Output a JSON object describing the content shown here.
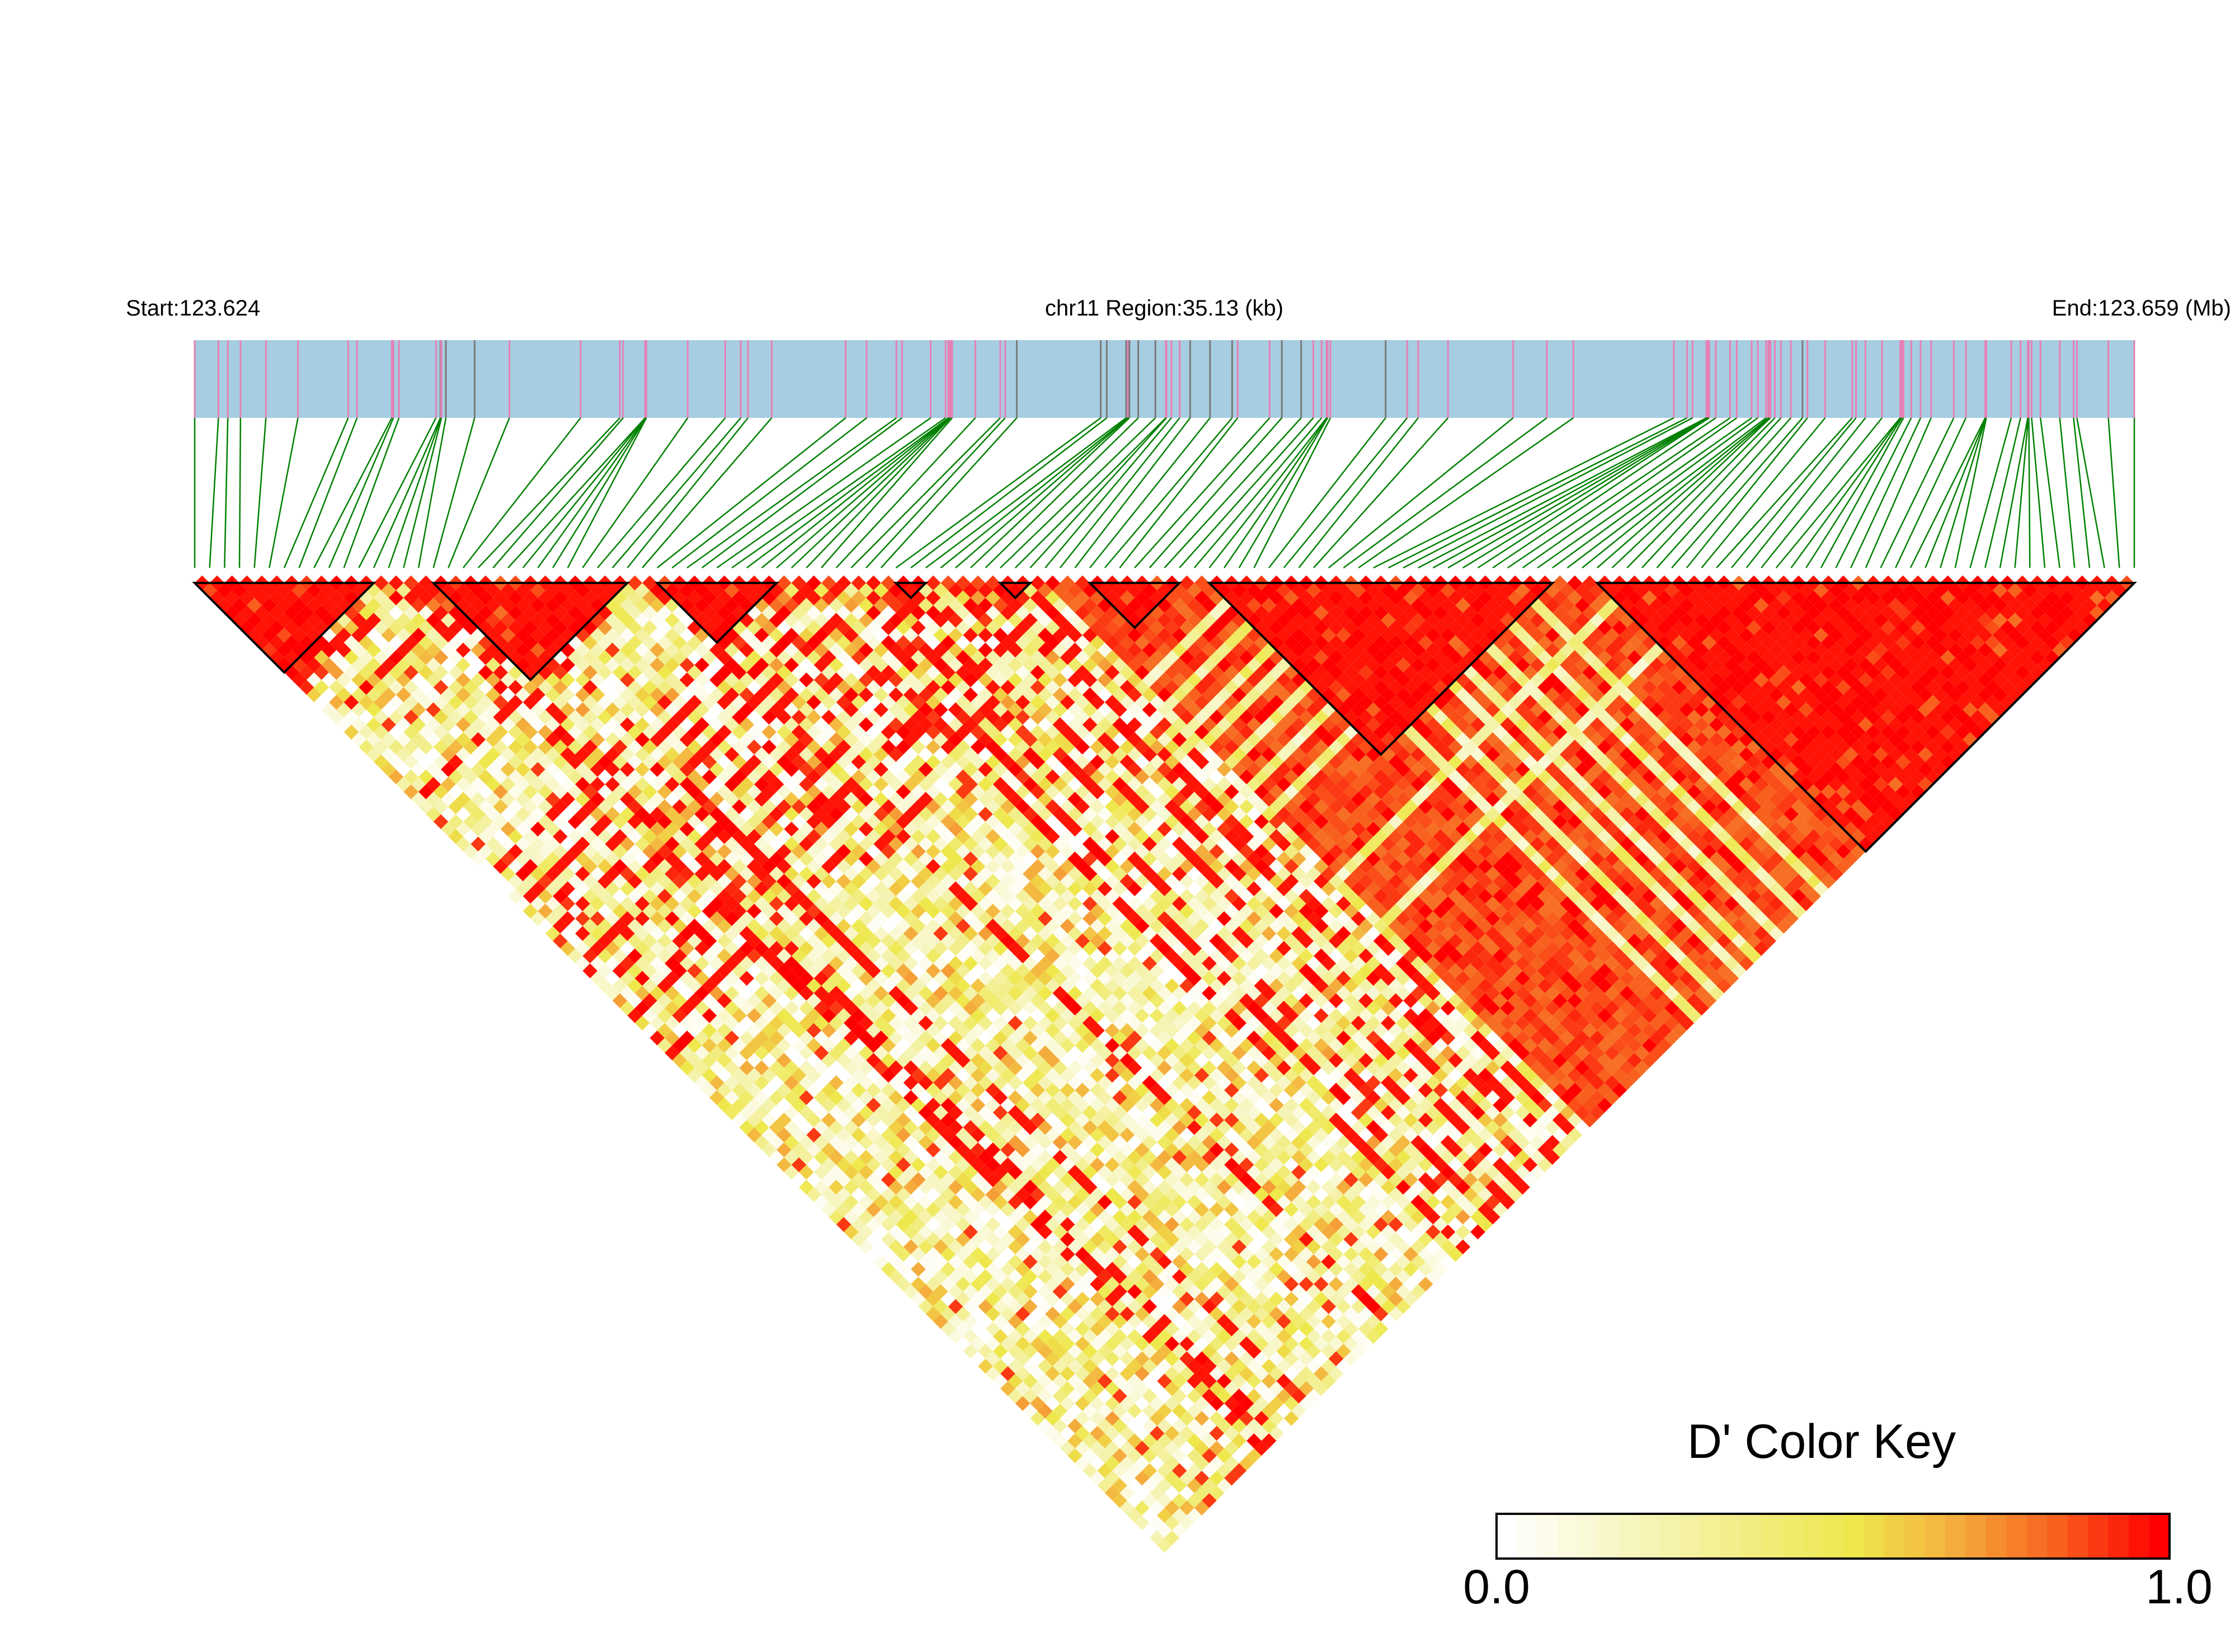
{
  "header": {
    "start_label": "Start:123.624",
    "region_label": "chr11 Region:35.13 (kb)",
    "end_label": "End:123.659 (Mb)"
  },
  "colors": {
    "gene_bar": "#A6CDE2",
    "snp_marker": "#E581B6",
    "snp_marker_alt": "#7A7A7A",
    "connector": "#008000",
    "block_outline": "#000000",
    "scale_stops": [
      "#FFFFFF",
      "#F3F09A",
      "#EEE84C",
      "#F4B03E",
      "#F8621F",
      "#FF0000"
    ]
  },
  "chart_data": {
    "type": "heatmap",
    "measure": "D'",
    "chromosome": "chr11",
    "start_mb": 123.624,
    "end_mb": 123.659,
    "region_kb": 35.13,
    "n_snps": 131,
    "snp_positions_kb": [
      0,
      0.43,
      0.6,
      0.83,
      1.29,
      1.87,
      2.78,
      2.94,
      3.57,
      3.6,
      3.7,
      4.37,
      4.45,
      4.46,
      4.47,
      4.55,
      5.07,
      5.7,
      6.99,
      7.7,
      7.76,
      8.16,
      8.16,
      8.17,
      8.17,
      8.18,
      8.93,
      9.61,
      9.89,
      10.02,
      10.45,
      11.79,
      12.17,
      12.71,
      12.81,
      13.33,
      13.6,
      13.65,
      13.66,
      13.67,
      13.68,
      13.69,
      13.72,
      14.14,
      14.59,
      14.68,
      14.89,
      16.41,
      16.52,
      16.87,
      16.9,
      16.91,
      16.93,
      17.09,
      17.4,
      17.59,
      17.6,
      17.69,
      17.84,
      18.03,
      18.39,
      18.79,
      18.89,
      19.47,
      19.69,
      20.04,
      20.26,
      20.41,
      20.5,
      20.51,
      20.52,
      20.57,
      21.57,
      21.96,
      22.16,
      22.7,
      23.88,
      24.49,
      24.97,
      26.79,
      27.03,
      27.13,
      27.38,
      27.4,
      27.41,
      27.42,
      27.43,
      27.55,
      27.81,
      27.93,
      28.2,
      28.31,
      28.46,
      28.5,
      28.52,
      28.54,
      28.62,
      28.73,
      28.91,
      29.12,
      29.21,
      29.53,
      30.02,
      30.09,
      30.26,
      30.56,
      30.89,
      30.9,
      30.92,
      30.95,
      31.09,
      31.26,
      31.45,
      31.86,
      32.08,
      32.43,
      32.44,
      32.44,
      32.45,
      32.9,
      33.07,
      33.2,
      33.21,
      33.22,
      33.27,
      33.43,
      33.78,
      34.03,
      34.09,
      34.66,
      35.13
    ],
    "alt_marker_positions_kb": [
      4.45,
      4.55,
      5.07,
      14.89,
      16.41,
      16.52,
      16.87,
      16.93,
      17.09,
      17.4,
      18.03,
      18.39,
      18.79,
      19.69,
      20.04,
      21.57,
      29.12
    ],
    "ld_blocks": [
      [
        0,
        12
      ],
      [
        16,
        29
      ],
      [
        31,
        39
      ],
      [
        47,
        49
      ],
      [
        54,
        56
      ],
      [
        60,
        66
      ],
      [
        68,
        91
      ],
      [
        94,
        130
      ]
    ],
    "high_ld_region_snps": [
      57,
      130
    ],
    "value_range": [
      0,
      1
    ],
    "legend": {
      "title": "D' Color Key",
      "min_label": "0.0",
      "max_label": "1.0",
      "steps": 33,
      "placement": "bottom-right"
    }
  }
}
